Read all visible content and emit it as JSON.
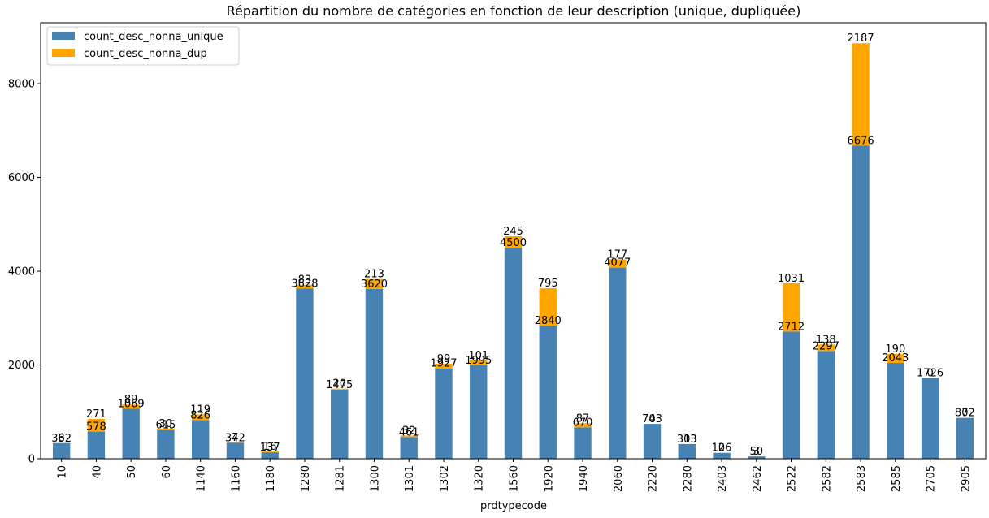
{
  "chart_data": {
    "type": "bar",
    "stacked": true,
    "title": "Répartition du nombre de catégories en fonction de leur description (unique, dupliquée)",
    "xlabel": "prdtypecode",
    "ylabel": "",
    "ylim": [
      0,
      9300
    ],
    "yticks": [
      0,
      2000,
      4000,
      6000,
      8000
    ],
    "grid": false,
    "legend_position": "top-left",
    "categories": [
      "10",
      "40",
      "50",
      "60",
      "1140",
      "1160",
      "1180",
      "1280",
      "1281",
      "1300",
      "1301",
      "1302",
      "1320",
      "1560",
      "1920",
      "1940",
      "2060",
      "2220",
      "2280",
      "2403",
      "2462",
      "2522",
      "2582",
      "2583",
      "2585",
      "2705",
      "2905"
    ],
    "series": [
      {
        "name": "count_desc_nonna_unique",
        "color": "#4682b4",
        "values": [
          332,
          578,
          1069,
          615,
          826,
          342,
          137,
          3628,
          1475,
          3620,
          461,
          1927,
          1995,
          4500,
          2840,
          670,
          4077,
          743,
          313,
          126,
          50,
          2712,
          2297,
          6676,
          2043,
          1726,
          872
        ]
      },
      {
        "name": "count_desc_nonna_dup",
        "color": "#ffa500",
        "values": [
          6,
          271,
          89,
          30,
          119,
          7,
          16,
          83,
          20,
          213,
          32,
          99,
          101,
          245,
          795,
          87,
          177,
          0,
          0,
          0,
          3,
          1031,
          138,
          2187,
          190,
          0,
          0
        ]
      }
    ]
  }
}
